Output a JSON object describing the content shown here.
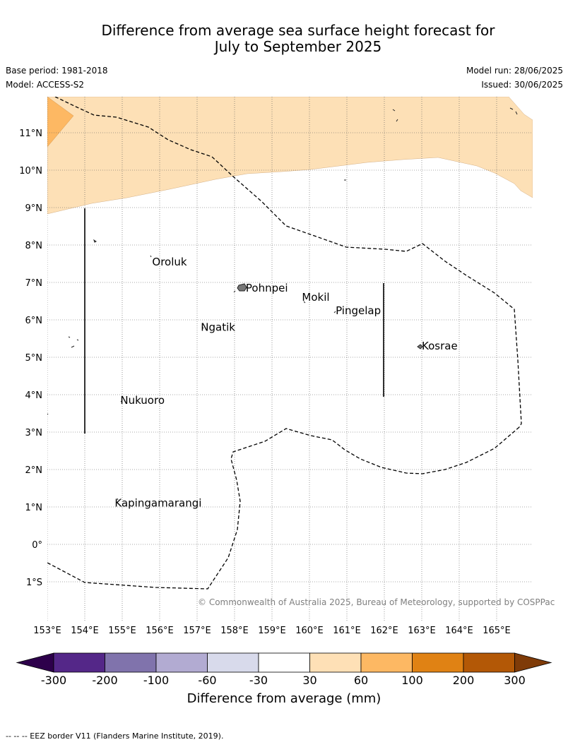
{
  "title": {
    "line1": "Difference from average sea surface height forecast for",
    "line2": "July to September 2025"
  },
  "meta": {
    "base_period": "Base period: 1981-2018",
    "model": "Model: ACCESS-S2",
    "model_run": "Model run: 28/06/2025",
    "issued": "Issued: 30/06/2025"
  },
  "map": {
    "lon_range": [
      153,
      165.9
    ],
    "lat_range": [
      -2,
      12
    ],
    "lon_ticks": [
      "153°E",
      "154°E",
      "155°E",
      "156°E",
      "157°E",
      "158°E",
      "159°E",
      "160°E",
      "161°E",
      "162°E",
      "163°E",
      "164°E",
      "165°E"
    ],
    "lat_ticks": [
      "11°N",
      "10°N",
      "9°N",
      "8°N",
      "7°N",
      "6°N",
      "5°N",
      "4°N",
      "3°N",
      "2°N",
      "1°N",
      "0°",
      "1°S"
    ],
    "places": [
      {
        "name": "Oroluk",
        "lon": 155.8,
        "lat": 7.55
      },
      {
        "name": "Pohnpei",
        "lon": 158.3,
        "lat": 6.85
      },
      {
        "name": "Mokil",
        "lon": 159.8,
        "lat": 6.6
      },
      {
        "name": "Pingelap",
        "lon": 160.7,
        "lat": 6.25
      },
      {
        "name": "Ngatik",
        "lon": 157.1,
        "lat": 5.8
      },
      {
        "name": "Kosrae",
        "lon": 163.0,
        "lat": 5.3
      },
      {
        "name": "Nukuoro",
        "lon": 154.95,
        "lat": 3.85
      },
      {
        "name": "Kapingamarangi",
        "lon": 154.8,
        "lat": 1.1
      }
    ],
    "colors": {
      "band_30_60": "#fde0b6",
      "band_60_100": "#fdb863",
      "coast": "#000000",
      "grid": "#555555"
    },
    "credit": "© Commonwealth of Australia 2025, Bureau of Meteorology, supported by COSPPac"
  },
  "colorbar": {
    "label": "Difference from average (mm)",
    "ticks": [
      "-300",
      "-200",
      "-100",
      "-60",
      "-30",
      "30",
      "60",
      "100",
      "200",
      "300"
    ],
    "colors": [
      "#542788",
      "#8073ac",
      "#b2abd2",
      "#d8daeb",
      "#ffffff",
      "#fee0b6",
      "#fdb863",
      "#e08214",
      "#b35806"
    ],
    "under_color": "#2d004b",
    "over_color": "#7f3b08"
  },
  "footnote": "--  --  -- EEZ border V11 (Flanders Marine Institute, 2019)."
}
